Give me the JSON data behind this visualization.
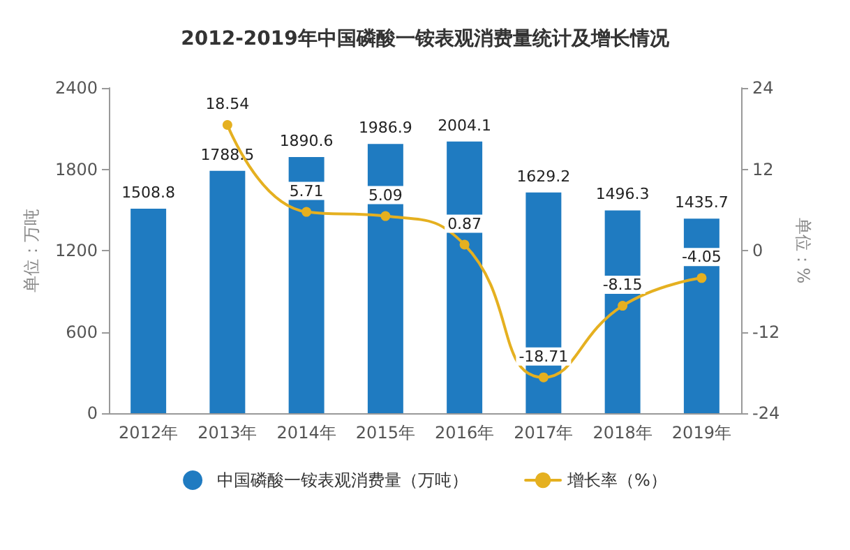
{
  "chart_data": {
    "type": "bar",
    "title": "2012-2019年中国磷酸一铵表观消费量统计及增长情况",
    "ylabel": "单位：万吨",
    "y2label": "单位：%",
    "categories": [
      "2012年",
      "2013年",
      "2014年",
      "2015年",
      "2016年",
      "2017年",
      "2018年",
      "2019年"
    ],
    "series": [
      {
        "name": "中国磷酸一铵表观消费量（万吨）",
        "color": "#1f7bc1",
        "values": [
          1508.8,
          1788.5,
          1890.6,
          1986.9,
          2004.1,
          1629.2,
          1496.3,
          1435.7
        ]
      },
      {
        "name": "增长率（%）",
        "type": "line",
        "axis": "y2",
        "color": "#e5b020",
        "values": [
          null,
          18.54,
          5.71,
          5.09,
          0.87,
          -18.71,
          -8.15,
          -4.05
        ]
      }
    ],
    "ylim": [
      0,
      2400
    ],
    "yticks": [
      0,
      600,
      1200,
      1800,
      2400
    ],
    "y2lim": [
      -24,
      24
    ],
    "y2ticks": [
      -24,
      -12,
      0,
      12,
      24
    ],
    "data_labels": true,
    "grid": false,
    "legend": "bottom",
    "marker": "circle",
    "line_style": "solid"
  }
}
